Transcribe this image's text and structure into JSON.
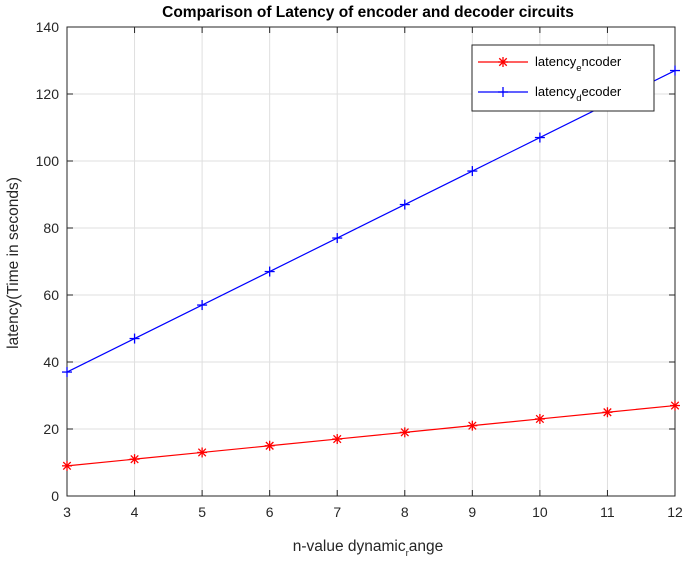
{
  "chart_data": {
    "type": "line",
    "title": "Comparison of Latency of encoder and decoder circuits",
    "xlabel": {
      "text": "n-value dynamic",
      "sub": "r",
      "rest": "ange"
    },
    "ylabel": "latency(Time in seconds)",
    "xlim": [
      3,
      12
    ],
    "ylim": [
      0,
      140
    ],
    "xticks": [
      3,
      4,
      5,
      6,
      7,
      8,
      9,
      10,
      11,
      12
    ],
    "yticks": [
      0,
      20,
      40,
      60,
      80,
      100,
      120,
      140
    ],
    "grid": true,
    "legend_position": "top-right",
    "series": [
      {
        "name": "latency_encoder",
        "legend": {
          "prefix": "latency",
          "sub": "e",
          "suffix": "ncoder"
        },
        "color": "#ff0000",
        "marker": "asterisk",
        "x": [
          3,
          4,
          5,
          6,
          7,
          8,
          9,
          10,
          11,
          12
        ],
        "y": [
          9,
          11,
          13,
          15,
          17,
          19,
          21,
          23,
          25,
          27
        ]
      },
      {
        "name": "latency_decoder",
        "legend": {
          "prefix": "latency",
          "sub": "d",
          "suffix": "ecoder"
        },
        "color": "#0000ff",
        "marker": "plus",
        "x": [
          3,
          4,
          5,
          6,
          7,
          8,
          9,
          10,
          11,
          12
        ],
        "y": [
          37,
          47,
          57,
          67,
          77,
          87,
          97,
          107,
          117,
          127
        ]
      }
    ]
  }
}
